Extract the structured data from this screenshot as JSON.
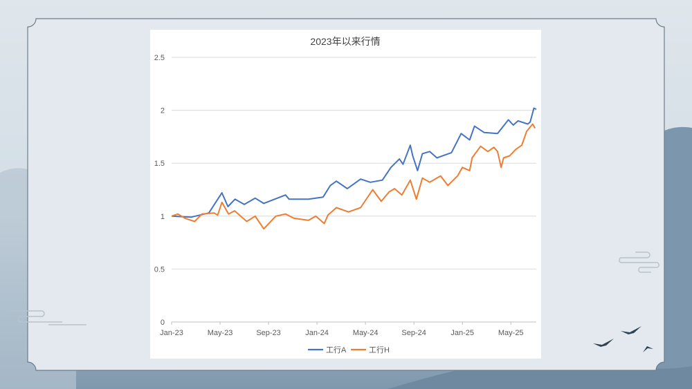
{
  "chart_data": {
    "type": "line",
    "title": "2023年以来行情",
    "xlabel": "",
    "ylabel": "",
    "x_unit": "months since Jan-23",
    "xlim": [
      0,
      30.1
    ],
    "ylim": [
      0,
      2.5
    ],
    "yticks": [
      "0",
      "0.5",
      "1",
      "1.5",
      "2",
      "2.5"
    ],
    "ytick_values": [
      0,
      0.5,
      1,
      1.5,
      2,
      2.5
    ],
    "xticks": [
      "Jan-23",
      "May-23",
      "Sep-23",
      "Jan-24",
      "May-24",
      "Sep-24",
      "Jan-25",
      "May-25"
    ],
    "xtick_values": [
      0,
      4,
      8,
      12,
      16,
      20,
      24,
      28
    ],
    "grid": true,
    "legend_position": "bottom",
    "series": [
      {
        "name": "工行A",
        "color": "#4472c4",
        "x": [
          0,
          1.6,
          3.07,
          4.15,
          4.65,
          5.23,
          6.0,
          6.9,
          7.6,
          9.4,
          9.7,
          11.3,
          12.5,
          13.1,
          13.6,
          14.5,
          15.6,
          16.4,
          17.4,
          18.1,
          18.8,
          19.1,
          19.7,
          19.9,
          20.3,
          20.7,
          21.3,
          21.9,
          23.1,
          23.9,
          24.6,
          25.0,
          25.8,
          26.9,
          27.8,
          28.2,
          28.6,
          29.4,
          29.6,
          29.9,
          30.1
        ],
        "y": [
          1.0,
          0.99,
          1.03,
          1.22,
          1.09,
          1.16,
          1.11,
          1.17,
          1.12,
          1.2,
          1.16,
          1.16,
          1.18,
          1.29,
          1.33,
          1.26,
          1.35,
          1.32,
          1.34,
          1.46,
          1.54,
          1.49,
          1.67,
          1.57,
          1.43,
          1.59,
          1.61,
          1.55,
          1.6,
          1.78,
          1.72,
          1.85,
          1.79,
          1.78,
          1.91,
          1.86,
          1.9,
          1.87,
          1.89,
          2.02,
          2.01
        ]
      },
      {
        "name": "工行H",
        "color": "#ed7d31",
        "x": [
          0,
          0.52,
          1.1,
          1.9,
          2.5,
          3.5,
          3.8,
          4.15,
          4.7,
          5.2,
          6.2,
          6.9,
          7.6,
          8.6,
          9.4,
          10.1,
          11.3,
          11.9,
          12.6,
          12.9,
          13.6,
          14.6,
          15.6,
          16.6,
          17.3,
          17.96,
          18.4,
          19.0,
          19.7,
          20.2,
          20.7,
          21.3,
          22.2,
          22.8,
          23.6,
          24.0,
          24.6,
          24.8,
          25.5,
          26.1,
          26.6,
          26.9,
          27.2,
          27.4,
          27.9,
          28.4,
          28.9,
          29.3,
          29.8,
          30.0
        ],
        "y": [
          1.0,
          1.02,
          0.98,
          0.95,
          1.02,
          1.03,
          1.01,
          1.13,
          1.02,
          1.05,
          0.95,
          1.0,
          0.88,
          1.0,
          1.02,
          0.98,
          0.96,
          1.0,
          0.93,
          1.01,
          1.08,
          1.04,
          1.08,
          1.25,
          1.14,
          1.23,
          1.26,
          1.2,
          1.34,
          1.16,
          1.36,
          1.32,
          1.38,
          1.29,
          1.38,
          1.46,
          1.43,
          1.55,
          1.66,
          1.61,
          1.65,
          1.61,
          1.46,
          1.55,
          1.57,
          1.63,
          1.67,
          1.8,
          1.87,
          1.83
        ]
      }
    ]
  }
}
